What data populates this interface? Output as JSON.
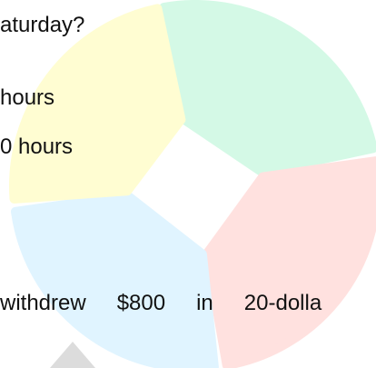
{
  "question": {
    "line_1": "aturday?",
    "line_2": "hours",
    "line_3": "0 hours",
    "line_4": [
      "withdrew",
      "$800",
      "in",
      "20-dolla"
    ]
  }
}
